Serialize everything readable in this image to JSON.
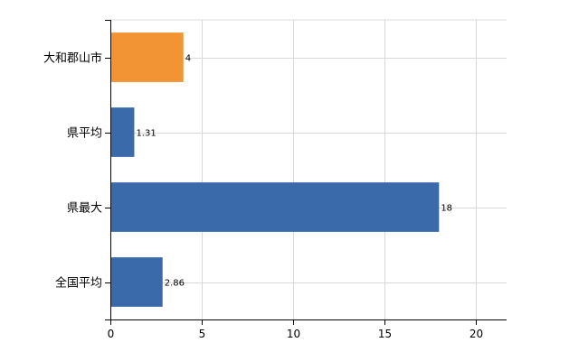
{
  "chart_data": {
    "type": "bar",
    "orientation": "horizontal",
    "categories": [
      "大和郡山市",
      "県平均",
      "県最大",
      "全国平均"
    ],
    "values": [
      4,
      1.31,
      18,
      2.86
    ],
    "value_labels": [
      "4",
      "1.31",
      "18",
      "2.86"
    ],
    "bar_colors": [
      "#f39434",
      "#3a6aaa",
      "#3a6aaa",
      "#3a6aaa"
    ],
    "xlim": [
      0,
      21.7
    ],
    "xticks": [
      0,
      5,
      10,
      15,
      20
    ],
    "grid": true,
    "title": "",
    "xlabel": "",
    "ylabel": ""
  }
}
